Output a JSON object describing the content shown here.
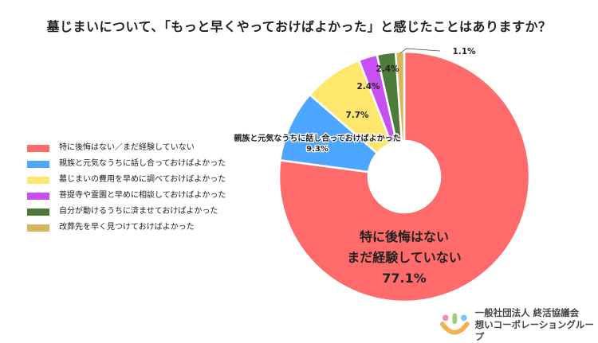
{
  "title": "墓じまいについて、「もっと早くやっておけばよかった」と感じたことはありますか？",
  "chart_data": {
    "type": "pie",
    "donut": true,
    "legend_position": "left",
    "series": [
      {
        "name": "特に後悔はない／まだ経験していない",
        "value": 77.1,
        "color": "#FF6B6B"
      },
      {
        "name": "親族と元気なうちに話し合っておけばよかった",
        "value": 9.3,
        "color": "#4DA6FF"
      },
      {
        "name": "墓じまいの費用を早めに調べておけばよかった",
        "value": 7.7,
        "color": "#FFE66D"
      },
      {
        "name": "菩提寺や霊園と早めに相談しておけばよかった",
        "value": 2.4,
        "color": "#C850F0"
      },
      {
        "name": "自分が動けるうちに済ませておけばよかった",
        "value": 2.4,
        "color": "#4E7A3A"
      },
      {
        "name": "改葬先を早く見つけておけばよかった",
        "value": 1.1,
        "color": "#D9B45C"
      }
    ],
    "slice_labels": [
      {
        "lines": [
          "特に後悔はない",
          "まだ経験していない",
          "77.1%"
        ]
      },
      {
        "lines": [
          "親族と元気なうちに話し合っておけばよかった",
          "9.3%"
        ]
      },
      {
        "lines": [
          "7.7%"
        ]
      },
      {
        "lines": [
          "2.4%"
        ]
      },
      {
        "lines": [
          "2.4%"
        ]
      },
      {
        "lines": [
          "1.1%"
        ]
      }
    ]
  },
  "logo": {
    "line1": "一般社団法人 終活協議会",
    "line2": "想いコーポレーショングループ"
  }
}
